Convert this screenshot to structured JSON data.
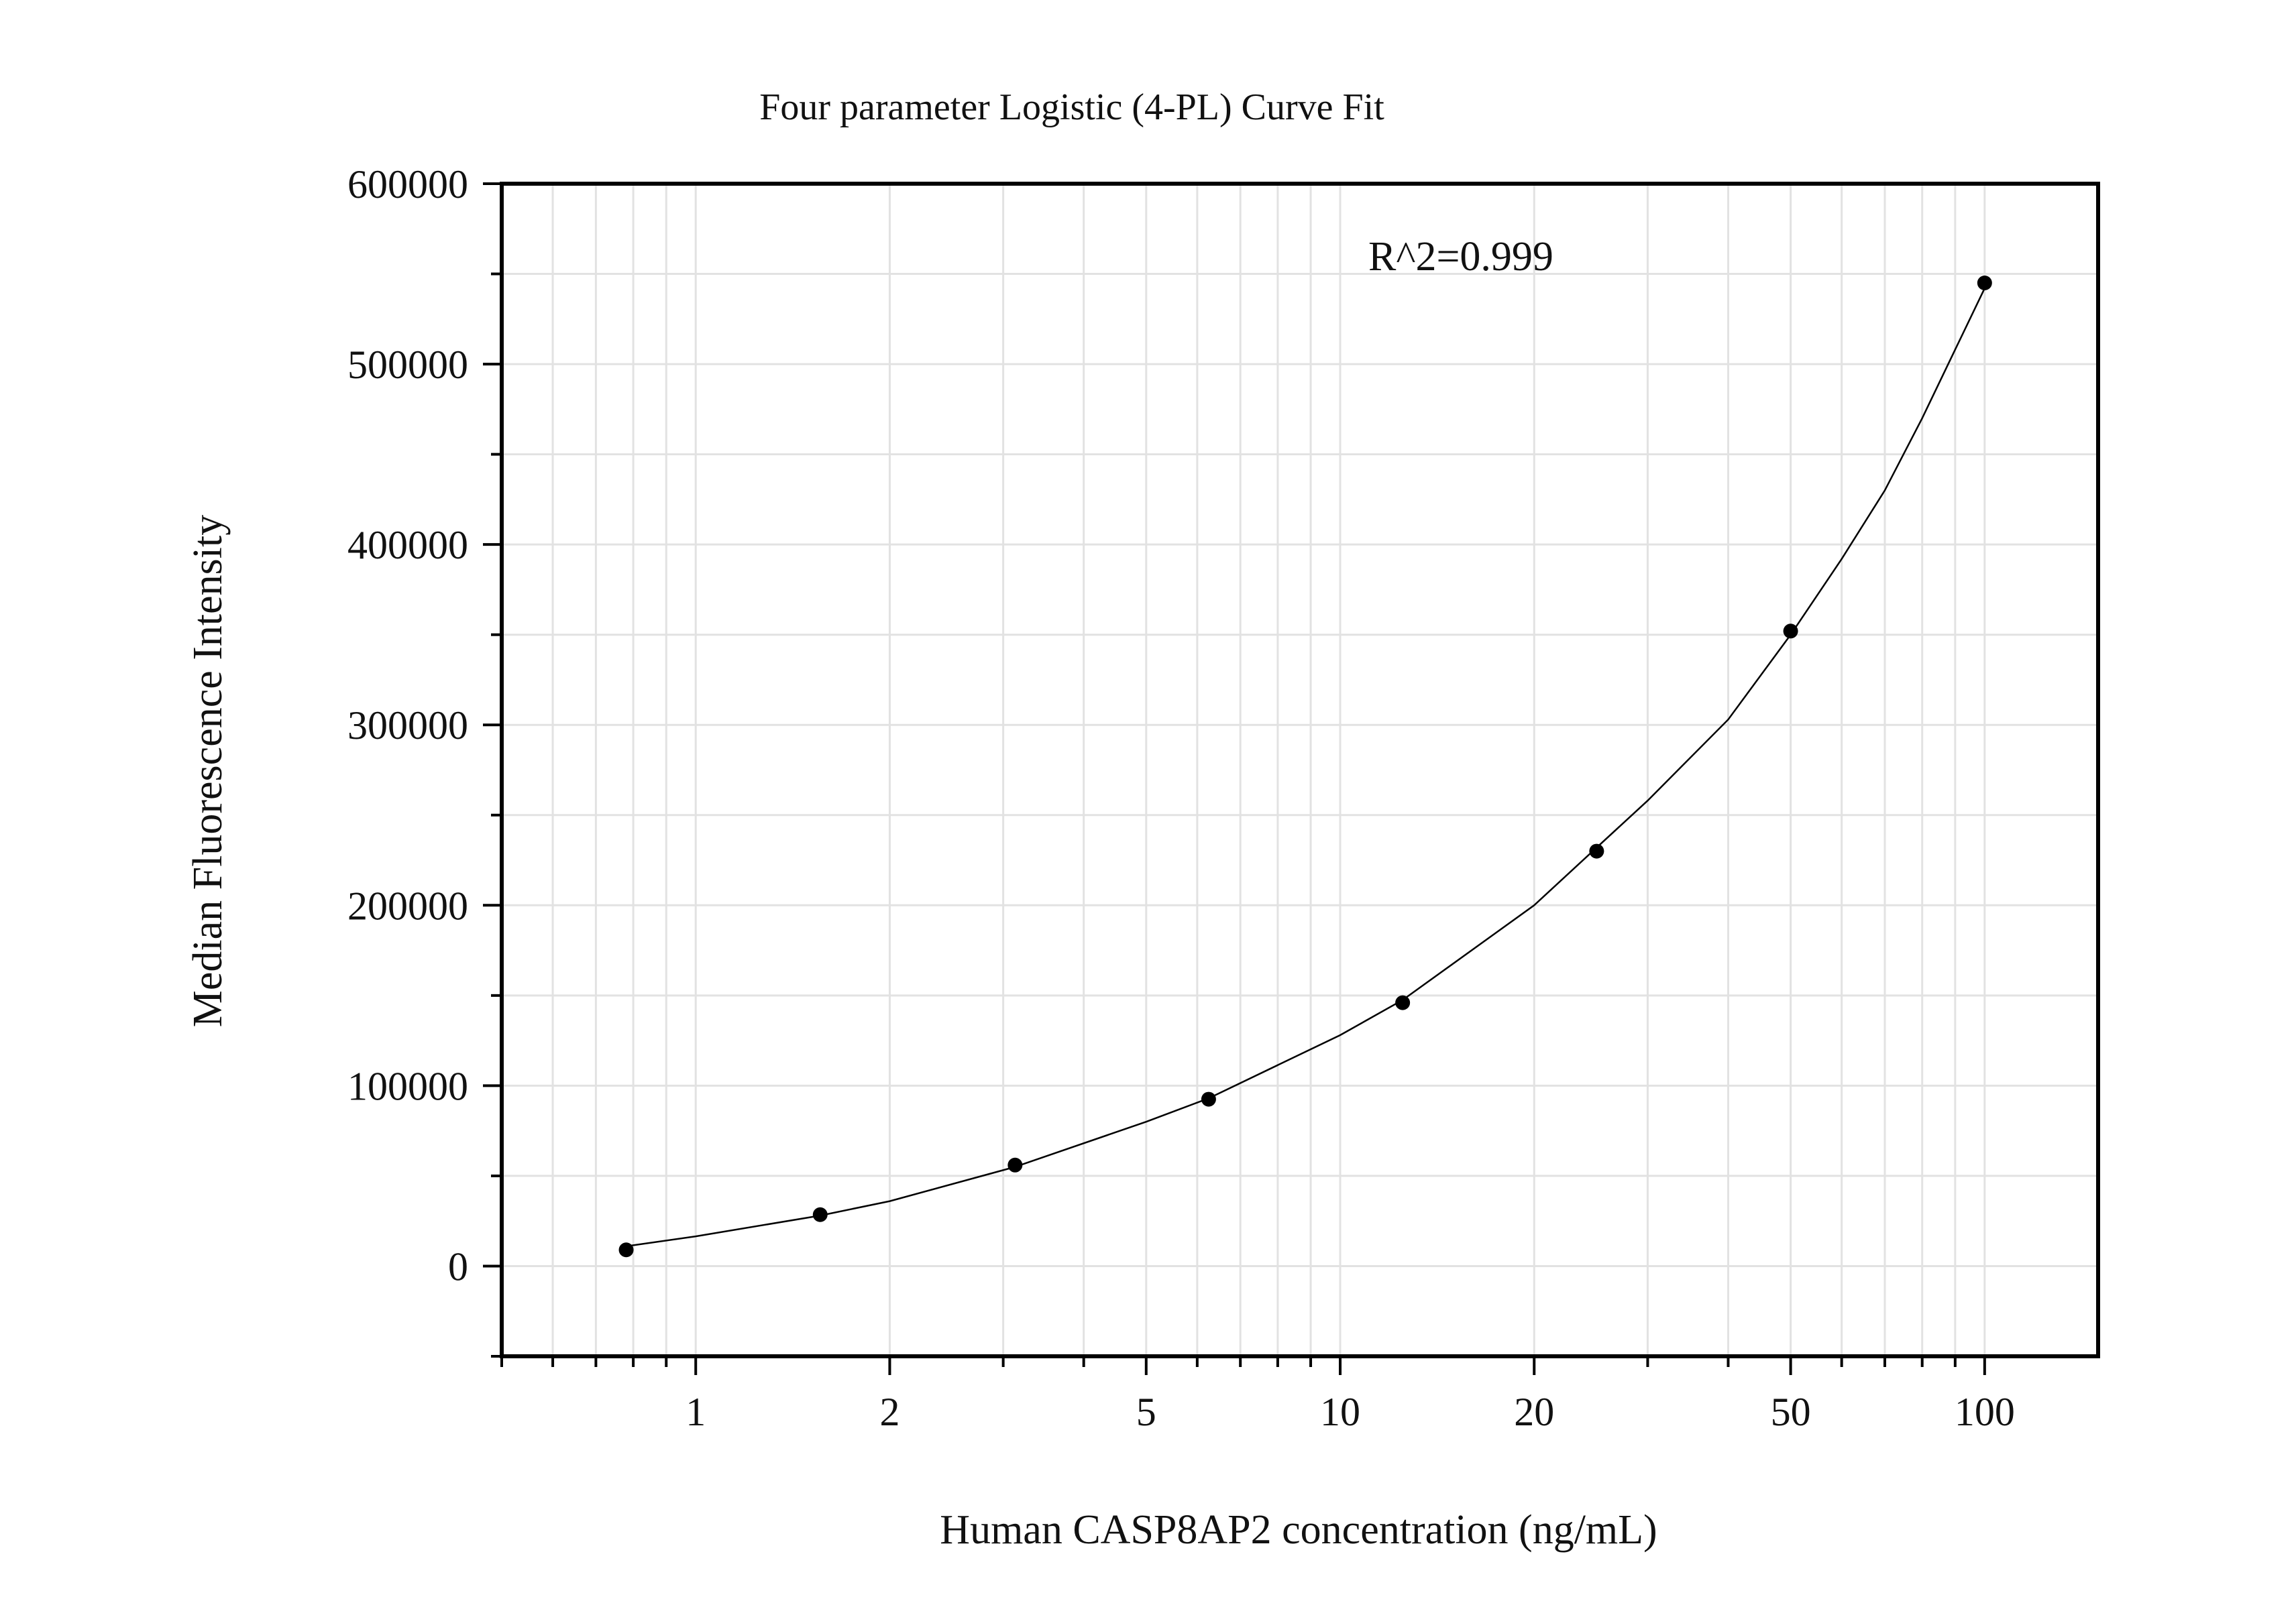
{
  "chart_data": {
    "type": "scatter",
    "title": "Four parameter Logistic (4-PL) Curve Fit",
    "xlabel": "Human CASP8AP2 concentration (ng/mL)",
    "ylabel": "Median Fluorescence Intensity",
    "annotation": "R^2=0.999",
    "x_scale": "log",
    "xlim": [
      0.5,
      150
    ],
    "ylim": [
      -50000,
      600000
    ],
    "x_ticks": [
      1,
      2,
      5,
      10,
      20,
      50,
      100
    ],
    "x_tick_labels": [
      "1",
      "2",
      "5",
      "10",
      "20",
      "50",
      "100"
    ],
    "y_ticks": [
      0,
      100000,
      200000,
      300000,
      400000,
      500000,
      600000
    ],
    "y_tick_labels": [
      "0",
      "100000",
      "200000",
      "300000",
      "400000",
      "500000",
      "600000"
    ],
    "grid": true,
    "series": [
      {
        "type": "scatter",
        "x": [
          0.78,
          1.56,
          3.13,
          6.25,
          12.5,
          25,
          50,
          100
        ],
        "y": [
          9000,
          28500,
          56000,
          92500,
          146000,
          230000,
          352000,
          545000
        ]
      },
      {
        "type": "line",
        "x": [
          0.78,
          1,
          1.56,
          2,
          3.13,
          5,
          6.25,
          10,
          12.5,
          20,
          25,
          30,
          40,
          50,
          60,
          70,
          80,
          90,
          100
        ],
        "y": [
          11000,
          16500,
          28000,
          36000,
          55000,
          80000,
          93000,
          128000,
          147500,
          200000,
          232000,
          258000,
          303000,
          350000,
          392000,
          430000,
          470000,
          508000,
          542000
        ]
      }
    ],
    "colors": {
      "axis": "#000000",
      "grid": "#e2e2e2",
      "points": "#000000",
      "curve": "#000000"
    }
  }
}
